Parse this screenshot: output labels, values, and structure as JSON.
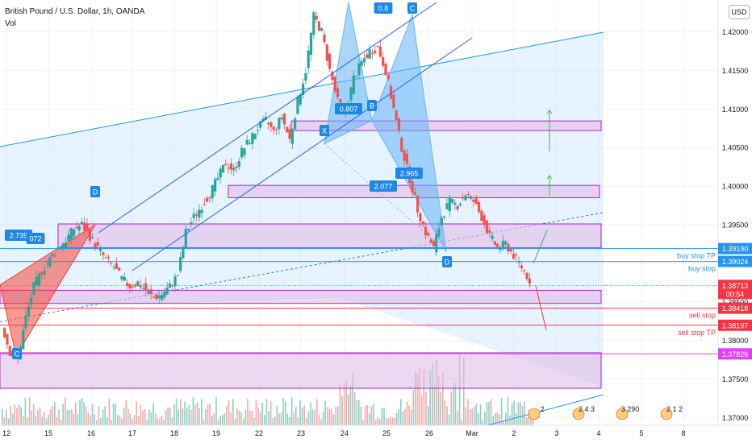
{
  "header": {
    "title": "British Pound / U.S. Dollar, 1h, OANDA",
    "indicator": "Vol"
  },
  "currency_button": "USD",
  "colors": {
    "up": "#26a69a",
    "down": "#ef5350",
    "zone_fill": "#e1bee7",
    "zone_stroke": "#b71fd1",
    "channel": "#2962ff",
    "harmonic_blue": "#2196f3",
    "harmonic_red": "#f23645",
    "buy_line": "#2196f3",
    "sell_line": "#f23645",
    "price_label": "#f23645"
  },
  "chart_data": {
    "type": "candlestick",
    "symbol": "GBPUSD",
    "timeframe": "1h",
    "ylim": [
      1.369,
      1.4235
    ],
    "y_ticks": [
      "1.42000",
      "1.41500",
      "1.41000",
      "1.40500",
      "1.40000",
      "1.39500",
      "1.39000",
      "1.38500",
      "1.38000",
      "1.37500",
      "1.37000"
    ],
    "x_ticks": [
      "12",
      "15",
      "16",
      "17",
      "18",
      "19",
      "22",
      "23",
      "24",
      "25",
      "26",
      "Mar",
      "2",
      "3",
      "4",
      "5",
      "8"
    ],
    "price_path": [
      1.382,
      1.3785,
      1.3775,
      1.383,
      1.387,
      1.389,
      1.3905,
      1.392,
      1.393,
      1.3945,
      1.395,
      1.3935,
      1.392,
      1.3905,
      1.3895,
      1.388,
      1.387,
      1.3875,
      1.3865,
      1.3855,
      1.386,
      1.387,
      1.3885,
      1.394,
      1.396,
      1.3975,
      1.399,
      1.401,
      1.403,
      1.402,
      1.4045,
      1.406,
      1.4075,
      1.4085,
      1.407,
      1.409,
      1.406,
      1.411,
      1.415,
      1.422,
      1.42,
      1.415,
      1.411,
      1.4095,
      1.414,
      1.416,
      1.4175,
      1.418,
      1.415,
      1.41,
      1.405,
      1.401,
      1.397,
      1.394,
      1.392,
      1.396,
      1.398,
      1.3975,
      1.399,
      1.398,
      1.396,
      1.3935,
      1.392,
      1.3925,
      1.391,
      1.3895,
      1.3878
    ],
    "demand_supply_zones": [
      {
        "top": 1.40845,
        "bottom": 1.4072
      },
      {
        "top": 1.4001,
        "bottom": 1.3985
      },
      {
        "top": 1.3951,
        "bottom": 1.392
      },
      {
        "top": 1.3865,
        "bottom": 1.3848
      },
      {
        "top": 1.3784,
        "bottom": 1.3738
      }
    ],
    "horizontal_levels": [
      {
        "label": "buy stop TP",
        "price": "1.39190",
        "side": "buy"
      },
      {
        "label": "buy stop",
        "price": "1.39024",
        "side": "buy"
      },
      {
        "label": "sell stop",
        "price": "1.38418",
        "side": "sell"
      },
      {
        "label": "sell stop TP",
        "price": "1.38197",
        "side": "sell"
      }
    ],
    "extra_level": {
      "price": "1.37826"
    },
    "current_price": {
      "price": "1.38713",
      "countdown": "00:54"
    },
    "pattern_points": [
      {
        "label": "X",
        "x": "23",
        "y": 1.4055
      },
      {
        "label": "B",
        "x": "24",
        "y": 1.4085
      },
      {
        "label": "C",
        "x": "25",
        "y": 1.4222
      },
      {
        "label": "D",
        "x": "26",
        "y": 1.3915
      }
    ],
    "left_pattern_points": [
      {
        "label": "D",
        "x": "16",
        "y": 1.395
      },
      {
        "label": "C",
        "x": "12",
        "y": 1.378
      }
    ],
    "ratio_labels": [
      "0.8",
      "0.807",
      "2.965",
      "2.077",
      "2.739",
      "072"
    ],
    "event_labels": [
      "2",
      "2 4 3",
      "3 290",
      "2 1 2"
    ]
  }
}
